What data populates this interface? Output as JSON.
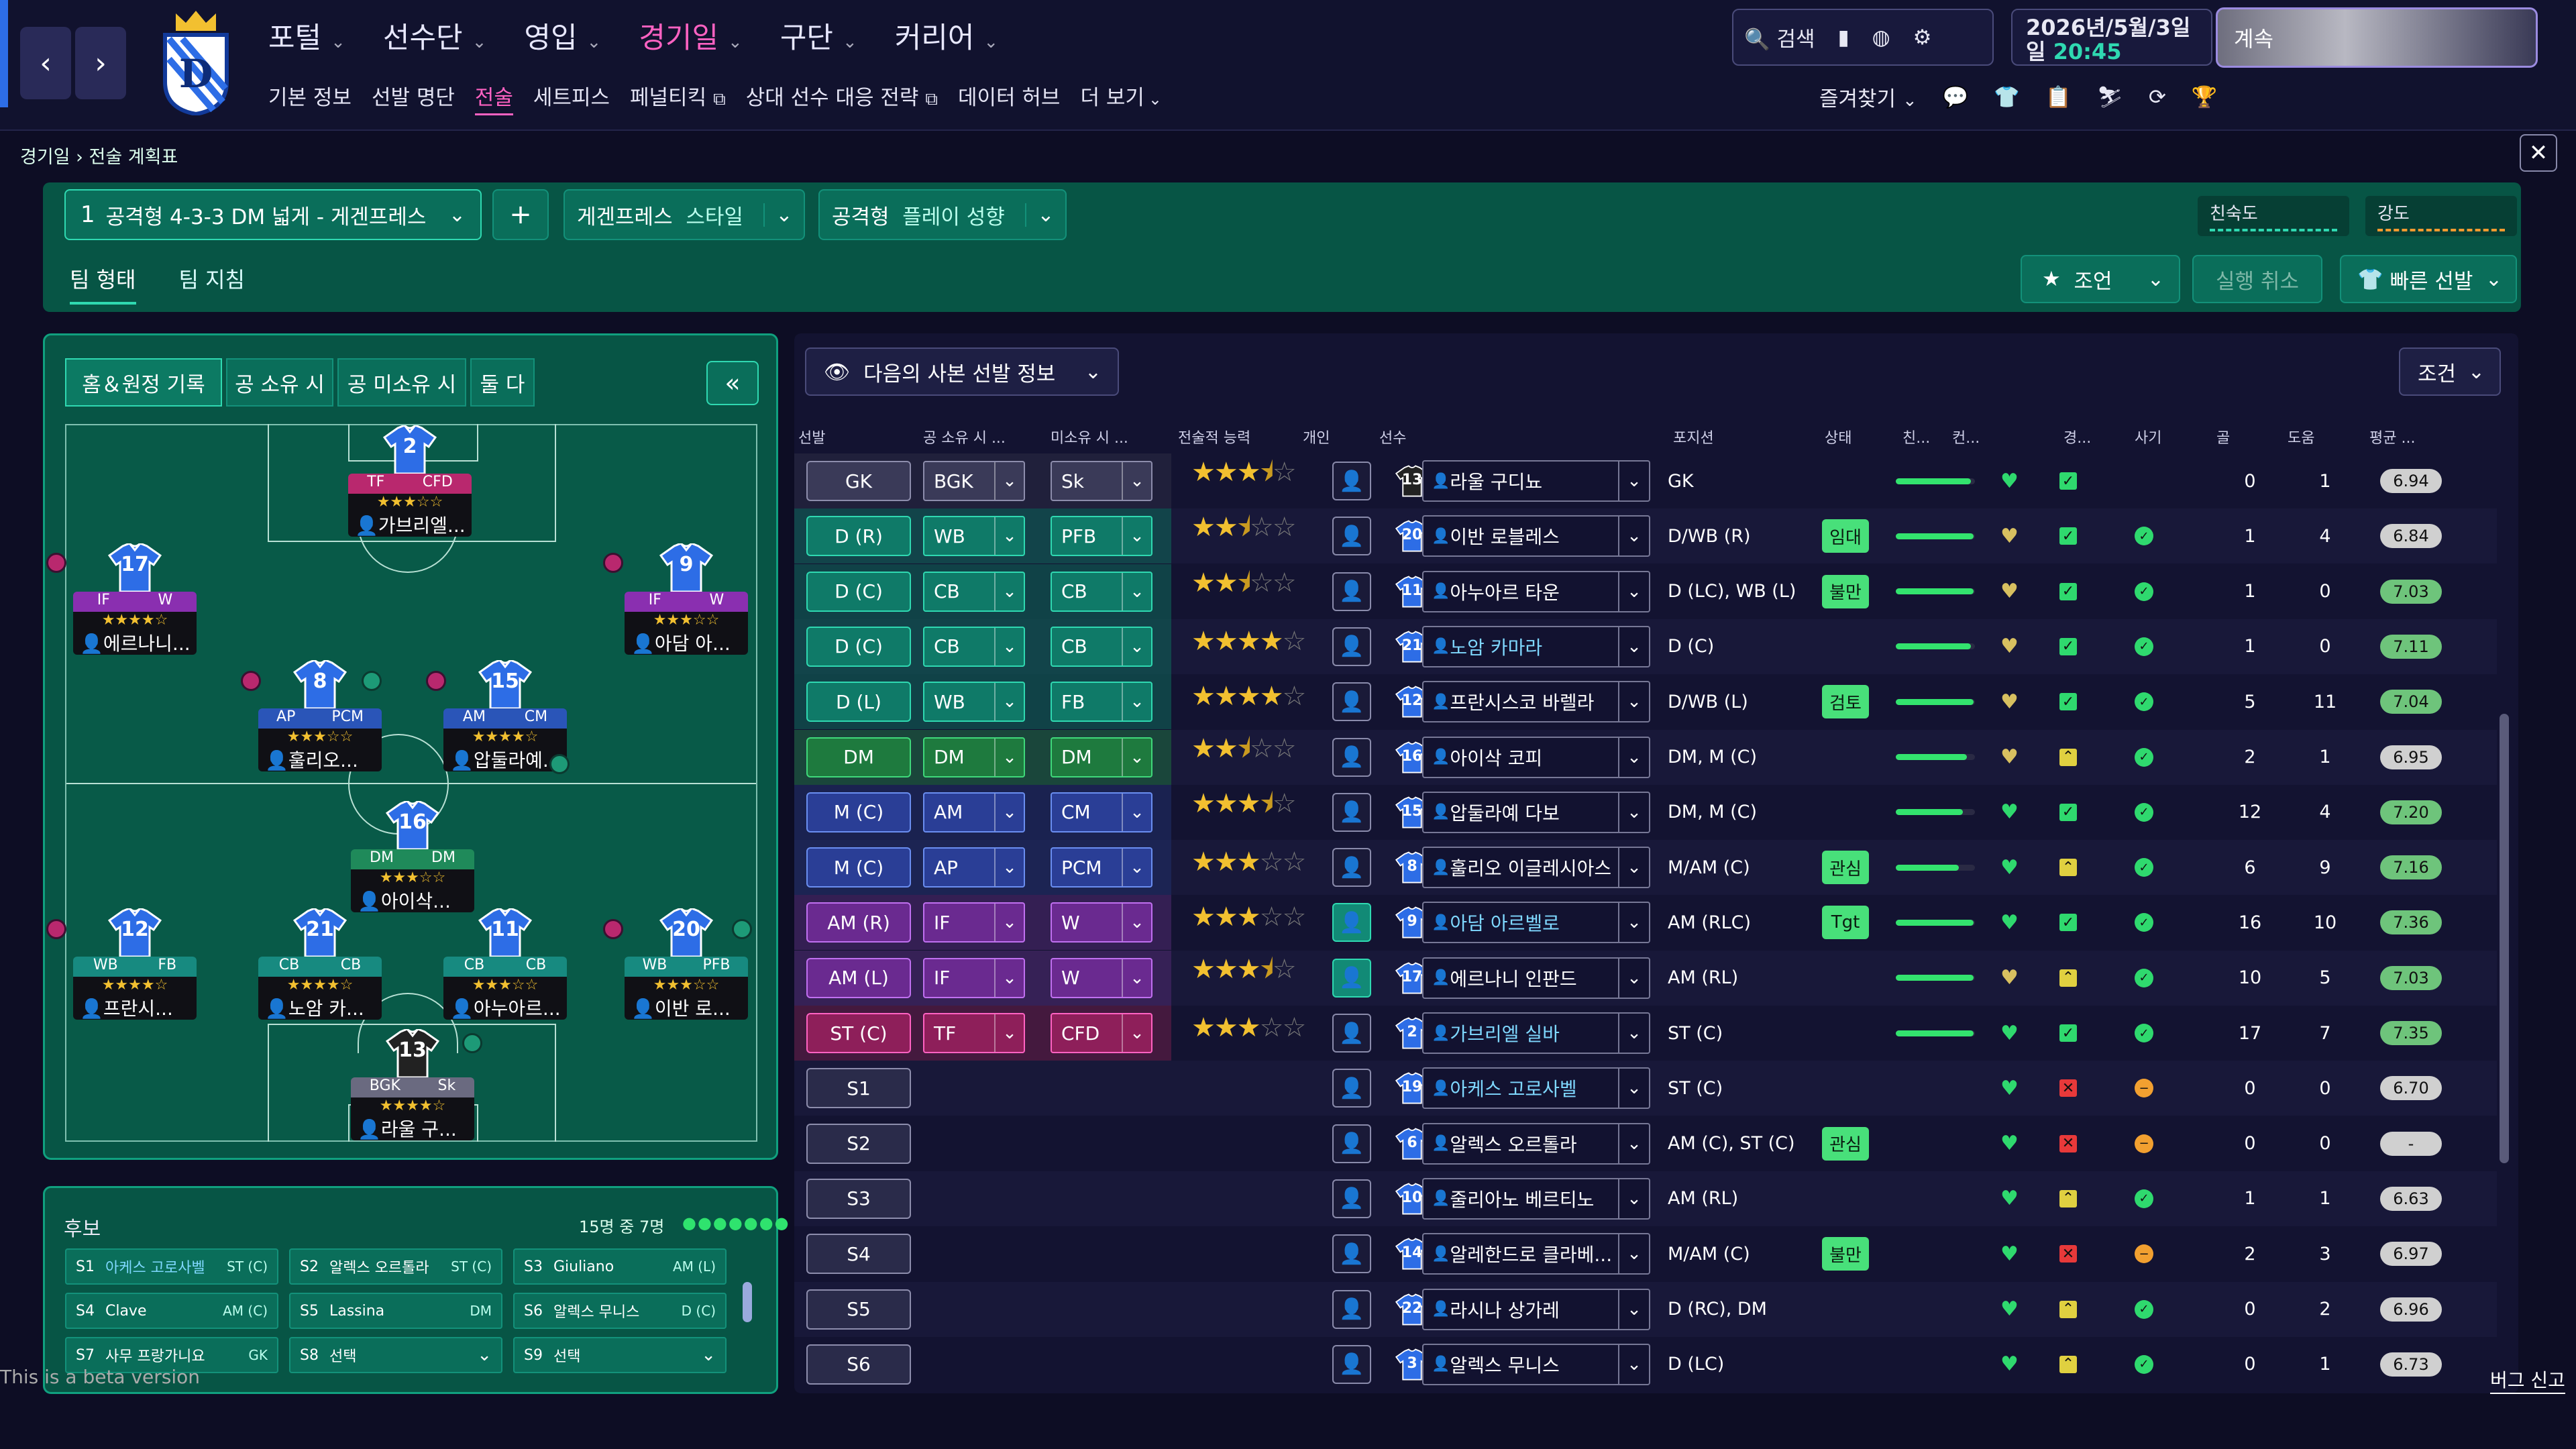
{
  "nav": {
    "back_icon": "chevron-left-icon",
    "forward_icon": "chevron-right-icon"
  },
  "main_menu": [
    {
      "label": "포털",
      "selected": false
    },
    {
      "label": "선수단",
      "selected": false
    },
    {
      "label": "영입",
      "selected": false
    },
    {
      "label": "경기일",
      "selected": true
    },
    {
      "label": "구단",
      "selected": false
    },
    {
      "label": "커리어",
      "selected": false
    }
  ],
  "sub_menu": [
    {
      "label": "기본 정보",
      "selected": false,
      "ext": false
    },
    {
      "label": "선발 명단",
      "selected": false,
      "ext": false
    },
    {
      "label": "전술",
      "selected": true,
      "ext": false
    },
    {
      "label": "세트피스",
      "selected": false,
      "ext": false
    },
    {
      "label": "페널티킥",
      "selected": false,
      "ext": true
    },
    {
      "label": "상대 선수 대응 전략",
      "selected": false,
      "ext": true
    },
    {
      "label": "데이터 허브",
      "selected": false,
      "ext": false
    },
    {
      "label": "더 보기",
      "selected": false,
      "ext": false
    }
  ],
  "toolbar": {
    "search_label": "검색"
  },
  "date": {
    "line1": "2026년/5월/3일",
    "day": "일",
    "time": "20:45"
  },
  "continue_label": "계속",
  "shortcuts_label": "즐겨찾기",
  "breadcrumb": {
    "parent": "경기일",
    "current": "전술 계획표"
  },
  "tactic": {
    "number": "1",
    "name": "공격형 4-3-3 DM 넓게 - 게겐프레스",
    "style_value": "게겐프레스",
    "style_label": "스타일",
    "play_value": "공격형",
    "play_label": "플레이 성향",
    "familiarity_label": "친숙도",
    "intensity_label": "강도",
    "tabs": [
      {
        "label": "팀 형태",
        "selected": true
      },
      {
        "label": "팀 지침",
        "selected": false
      }
    ],
    "advice_label": "조언",
    "undo_label": "실행 취소",
    "quick_pick_label": "빠른 선발"
  },
  "pitch_tabs": [
    {
      "label": "홈＆원정 기록",
      "selected": true
    },
    {
      "label": "공 소유 시",
      "selected": false
    },
    {
      "label": "공 미소유 시",
      "selected": false
    },
    {
      "label": "둘 다",
      "selected": false
    }
  ],
  "pitch_players": [
    {
      "num": "2",
      "r1": "TF",
      "r2": "CFD",
      "stars": "★★★☆☆",
      "name": "가브리엘...",
      "color": "#b9286e",
      "shirt": "#2d6de6"
    },
    {
      "num": "17",
      "r1": "IF",
      "r2": "W",
      "stars": "★★★★☆",
      "name": "에르나니...",
      "color": "#8a2fb0",
      "shirt": "#2d6de6"
    },
    {
      "num": "9",
      "r1": "IF",
      "r2": "W",
      "stars": "★★★☆☆",
      "name": "아담 아...",
      "color": "#8a2fb0",
      "shirt": "#2d6de6"
    },
    {
      "num": "8",
      "r1": "AP",
      "r2": "PCM",
      "stars": "★★★☆☆",
      "name": "훌리오...",
      "color": "#2a55b8",
      "shirt": "#2d6de6"
    },
    {
      "num": "15",
      "r1": "AM",
      "r2": "CM",
      "stars": "★★★★☆",
      "name": "압둘라예...",
      "color": "#2a55b8",
      "shirt": "#2d6de6"
    },
    {
      "num": "16",
      "r1": "DM",
      "r2": "DM",
      "stars": "★★★☆☆",
      "name": "아이삭...",
      "color": "#1f8a5a",
      "shirt": "#2d6de6"
    },
    {
      "num": "12",
      "r1": "WB",
      "r2": "FB",
      "stars": "★★★★☆",
      "name": "프란시...",
      "color": "#178a80",
      "shirt": "#2d6de6"
    },
    {
      "num": "21",
      "r1": "CB",
      "r2": "CB",
      "stars": "★★★★☆",
      "name": "노암 카...",
      "color": "#178a80",
      "shirt": "#2d6de6"
    },
    {
      "num": "11",
      "r1": "CB",
      "r2": "CB",
      "stars": "★★★☆☆",
      "name": "아누아르...",
      "color": "#178a80",
      "shirt": "#2d6de6"
    },
    {
      "num": "20",
      "r1": "WB",
      "r2": "PFB",
      "stars": "★★★☆☆",
      "name": "이반 로...",
      "color": "#178a80",
      "shirt": "#2d6de6"
    },
    {
      "num": "13",
      "r1": "BGK",
      "r2": "Sk",
      "stars": "★★★★☆",
      "name": "라울 구...",
      "color": "#6a6a80",
      "shirt": "#222"
    }
  ],
  "bench": {
    "title": "후보",
    "count": "15명 중 7명",
    "items": [
      {
        "slot": "S1",
        "name": "아케스 고로사벨",
        "pos": "ST (C)",
        "link": true
      },
      {
        "slot": "S2",
        "name": "알렉스 오르톨라",
        "pos": "ST (C)",
        "link": false
      },
      {
        "slot": "S3",
        "name": "Giuliano",
        "pos": "AM (L)",
        "link": false
      },
      {
        "slot": "S4",
        "name": "Clave",
        "pos": "AM (C)",
        "link": false
      },
      {
        "slot": "S5",
        "name": "Lassina",
        "pos": "DM",
        "link": false
      },
      {
        "slot": "S6",
        "name": "알렉스 무니스",
        "pos": "D (C)",
        "link": false
      },
      {
        "slot": "S7",
        "name": "사무 프랑가니요",
        "pos": "GK",
        "link": false
      },
      {
        "slot": "S8",
        "name": "선택",
        "pos": "",
        "link": false
      },
      {
        "slot": "S9",
        "name": "선택",
        "pos": "",
        "link": false
      }
    ]
  },
  "table": {
    "view_label": "다음의 사본 선발 정보",
    "filter_label": "조건",
    "headers": [
      "선발",
      "공 소유 시 ...",
      "미소유 시 ...",
      "전술적 능력",
      "개인",
      "선수",
      "포지션",
      "상태",
      "친...",
      "컨...",
      "경...",
      "사기",
      "골",
      "도움",
      "평균 ..."
    ],
    "rows": [
      {
        "pos": "GK",
        "r1": "BGK",
        "r2": "Sk",
        "stars": 3.5,
        "num": "13",
        "name": "라울 구디뇨",
        "link": false,
        "position": "GK",
        "status": "",
        "fit": 0.95,
        "sharp": "green",
        "cond": "green",
        "morale": "",
        "goals": "0",
        "assists": "1",
        "rating": "6.94",
        "rcolor": "gray",
        "band": "#2c2c44"
      },
      {
        "pos": "D (R)",
        "r1": "WB",
        "r2": "PFB",
        "stars": 2.5,
        "num": "20",
        "name": "이반 로블레스",
        "link": false,
        "position": "D/WB (R)",
        "status": "임대",
        "fit": 0.98,
        "sharp": "yellow",
        "cond": "green",
        "morale": "green",
        "goals": "1",
        "assists": "4",
        "rating": "6.84",
        "rcolor": "gray",
        "band": "#0f6a5a"
      },
      {
        "pos": "D (C)",
        "r1": "CB",
        "r2": "CB",
        "stars": 2.5,
        "num": "11",
        "name": "아누아르 타운",
        "link": false,
        "position": "D (LC), WB (L)",
        "status": "불만",
        "fit": 0.98,
        "sharp": "yellow",
        "cond": "green",
        "morale": "green",
        "goals": "1",
        "assists": "0",
        "rating": "7.03",
        "rcolor": "green",
        "band": "#0f6a5a"
      },
      {
        "pos": "D (C)",
        "r1": "CB",
        "r2": "CB",
        "stars": 4,
        "num": "21",
        "name": "노암 카마라",
        "link": true,
        "position": "D (C)",
        "status": "",
        "fit": 0.95,
        "sharp": "yellow",
        "cond": "green",
        "morale": "green",
        "goals": "1",
        "assists": "0",
        "rating": "7.11",
        "rcolor": "green",
        "band": "#0f6a5a"
      },
      {
        "pos": "D (L)",
        "r1": "WB",
        "r2": "FB",
        "stars": 4,
        "num": "12",
        "name": "프란시스코 바렐라",
        "link": false,
        "position": "D/WB (L)",
        "status": "검토",
        "fit": 0.98,
        "sharp": "yellow",
        "cond": "green",
        "morale": "green",
        "goals": "5",
        "assists": "11",
        "rating": "7.04",
        "rcolor": "green",
        "band": "#0f6a5a"
      },
      {
        "pos": "DM",
        "r1": "DM",
        "r2": "DM",
        "stars": 2.5,
        "num": "16",
        "name": "아이삭 코피",
        "link": false,
        "position": "DM, M (C)",
        "status": "",
        "fit": 0.9,
        "sharp": "yellow",
        "cond": "up",
        "morale": "green",
        "goals": "2",
        "assists": "1",
        "rating": "6.95",
        "rcolor": "gray",
        "band": "#1d6e3e"
      },
      {
        "pos": "M (C)",
        "r1": "AM",
        "r2": "CM",
        "stars": 3.5,
        "num": "15",
        "name": "압둘라예 다보",
        "link": false,
        "position": "DM, M (C)",
        "status": "",
        "fit": 0.85,
        "sharp": "green",
        "cond": "green",
        "morale": "green",
        "goals": "12",
        "assists": "4",
        "rating": "7.20",
        "rcolor": "green",
        "band": "#21306a"
      },
      {
        "pos": "M (C)",
        "r1": "AP",
        "r2": "PCM",
        "stars": 3,
        "num": "8",
        "name": "훌리오 이글레시아스",
        "link": false,
        "position": "M/AM (C)",
        "status": "관심",
        "fit": 0.8,
        "sharp": "green",
        "cond": "up",
        "morale": "green",
        "goals": "6",
        "assists": "9",
        "rating": "7.16",
        "rcolor": "green",
        "band": "#21306a"
      },
      {
        "pos": "AM (R)",
        "r1": "IF",
        "r2": "W",
        "stars": 3,
        "num": "9",
        "name": "아담 아르벨로",
        "link": true,
        "position": "AM (RLC)",
        "status": "Tgt",
        "fit": 0.98,
        "sharp": "green",
        "cond": "green",
        "morale": "green",
        "goals": "16",
        "assists": "10",
        "rating": "7.36",
        "rcolor": "green",
        "band": "#512a70",
        "pon": true
      },
      {
        "pos": "AM (L)",
        "r1": "IF",
        "r2": "W",
        "stars": 3.5,
        "num": "17",
        "name": "에르나니 인판드",
        "link": false,
        "position": "AM (RL)",
        "status": "",
        "fit": 0.98,
        "sharp": "yellow",
        "cond": "up",
        "morale": "green",
        "goals": "10",
        "assists": "5",
        "rating": "7.03",
        "rcolor": "green",
        "band": "#512a70",
        "pon": true
      },
      {
        "pos": "ST (C)",
        "r1": "TF",
        "r2": "CFD",
        "stars": 3,
        "num": "2",
        "name": "가브리엘 실바",
        "link": true,
        "position": "ST (C)",
        "status": "",
        "fit": 0.98,
        "sharp": "green",
        "cond": "green",
        "morale": "green",
        "goals": "17",
        "assists": "7",
        "rating": "7.35",
        "rcolor": "green",
        "band": "#6e1f48"
      },
      {
        "pos": "S1",
        "r1": "",
        "r2": "",
        "stars": 0,
        "num": "19",
        "name": "아케스 고로사벨",
        "link": true,
        "position": "ST (C)",
        "status": "",
        "fit": 0,
        "sharp": "green",
        "cond": "red",
        "morale": "orange",
        "goals": "0",
        "assists": "0",
        "rating": "6.70",
        "rcolor": "gray",
        "band": ""
      },
      {
        "pos": "S2",
        "r1": "",
        "r2": "",
        "stars": 0,
        "num": "6",
        "name": "알렉스 오르톨라",
        "link": false,
        "position": "AM (C), ST (C)",
        "status": "관심",
        "fit": 0,
        "sharp": "green",
        "cond": "red",
        "morale": "orange",
        "goals": "0",
        "assists": "0",
        "rating": "-",
        "rcolor": "gray",
        "band": ""
      },
      {
        "pos": "S3",
        "r1": "",
        "r2": "",
        "stars": 0,
        "num": "10",
        "name": "줄리아노 베르티노",
        "link": false,
        "position": "AM (RL)",
        "status": "",
        "fit": 0,
        "sharp": "green",
        "cond": "up",
        "morale": "green",
        "goals": "1",
        "assists": "1",
        "rating": "6.63",
        "rcolor": "gray",
        "band": ""
      },
      {
        "pos": "S4",
        "r1": "",
        "r2": "",
        "stars": 0,
        "num": "14",
        "name": "알레한드로 클라베...",
        "link": false,
        "position": "M/AM (C)",
        "status": "불만",
        "fit": 0,
        "sharp": "green",
        "cond": "red",
        "morale": "orange",
        "goals": "2",
        "assists": "3",
        "rating": "6.97",
        "rcolor": "gray",
        "band": ""
      },
      {
        "pos": "S5",
        "r1": "",
        "r2": "",
        "stars": 0,
        "num": "22",
        "name": "라시나 상가레",
        "link": false,
        "position": "D (RC), DM",
        "status": "",
        "fit": 0,
        "sharp": "green",
        "cond": "up",
        "morale": "green",
        "goals": "0",
        "assists": "2",
        "rating": "6.96",
        "rcolor": "gray",
        "band": ""
      },
      {
        "pos": "S6",
        "r1": "",
        "r2": "",
        "stars": 0,
        "num": "3",
        "name": "알렉스 무니스",
        "link": false,
        "position": "D (LC)",
        "status": "",
        "fit": 0,
        "sharp": "green",
        "cond": "up",
        "morale": "green",
        "goals": "0",
        "assists": "1",
        "rating": "6.73",
        "rcolor": "gray",
        "band": ""
      }
    ]
  },
  "footer": {
    "beta": "This is a beta version",
    "bug_label": "버그 신고"
  },
  "colors": {
    "accent": "#ff62c2",
    "green_panel": "#075545",
    "teal": "#2fd9b1",
    "star": "#f2c030"
  }
}
